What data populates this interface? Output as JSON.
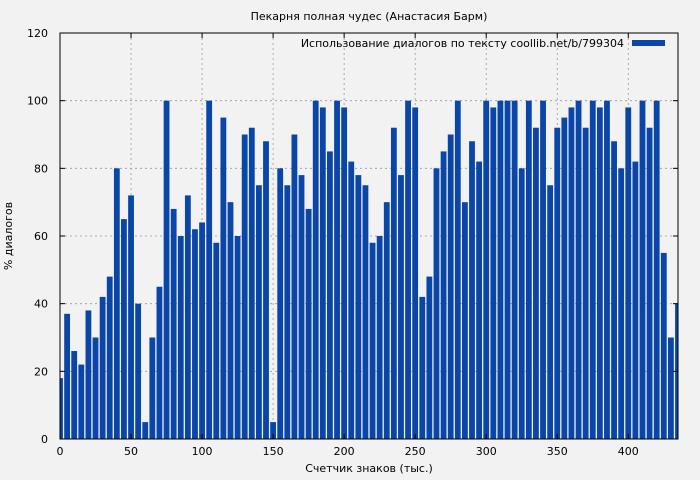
{
  "chart_data": {
    "type": "bar",
    "title": "Пекарня полная чудес (Анастасия Барм)",
    "xlabel": "Счетчик знаков (тыс.)",
    "ylabel": "% диалогов",
    "xlim": [
      0,
      435
    ],
    "ylim": [
      0,
      120
    ],
    "xticks": [
      0,
      50,
      100,
      150,
      200,
      250,
      300,
      350,
      400
    ],
    "yticks": [
      0,
      20,
      40,
      60,
      80,
      100,
      120
    ],
    "grid": true,
    "legend_position": "top-right",
    "series": [
      {
        "name": "Использование диалогов по тексту coollib.net/b/799304",
        "color": "#0a46a8",
        "x": [
          0,
          5,
          10,
          15,
          20,
          25,
          30,
          35,
          40,
          45,
          50,
          55,
          60,
          65,
          70,
          75,
          80,
          85,
          90,
          95,
          100,
          105,
          110,
          115,
          120,
          125,
          130,
          135,
          140,
          145,
          150,
          155,
          160,
          165,
          170,
          175,
          180,
          185,
          190,
          195,
          200,
          205,
          210,
          215,
          220,
          225,
          230,
          235,
          240,
          245,
          250,
          255,
          260,
          265,
          270,
          275,
          280,
          285,
          290,
          295,
          300,
          305,
          310,
          315,
          320,
          325,
          330,
          335,
          340,
          345,
          350,
          355,
          360,
          365,
          370,
          375,
          380,
          385,
          390,
          395,
          400,
          405,
          410,
          415,
          420,
          425,
          430,
          435
        ],
        "values": [
          18,
          37,
          26,
          22,
          38,
          30,
          42,
          48,
          80,
          65,
          72,
          40,
          5,
          30,
          45,
          100,
          68,
          60,
          72,
          62,
          64,
          100,
          58,
          95,
          70,
          60,
          90,
          92,
          75,
          88,
          5,
          80,
          75,
          90,
          78,
          68,
          100,
          98,
          85,
          100,
          98,
          82,
          78,
          75,
          58,
          60,
          70,
          92,
          78,
          100,
          98,
          42,
          48,
          80,
          85,
          90,
          100,
          70,
          88,
          82,
          100,
          98,
          100,
          100,
          100,
          80,
          100,
          92,
          100,
          75,
          92,
          95,
          98,
          100,
          92,
          100,
          98,
          100,
          88,
          80,
          98,
          82,
          100,
          92,
          100,
          55,
          30,
          40
        ]
      }
    ]
  }
}
